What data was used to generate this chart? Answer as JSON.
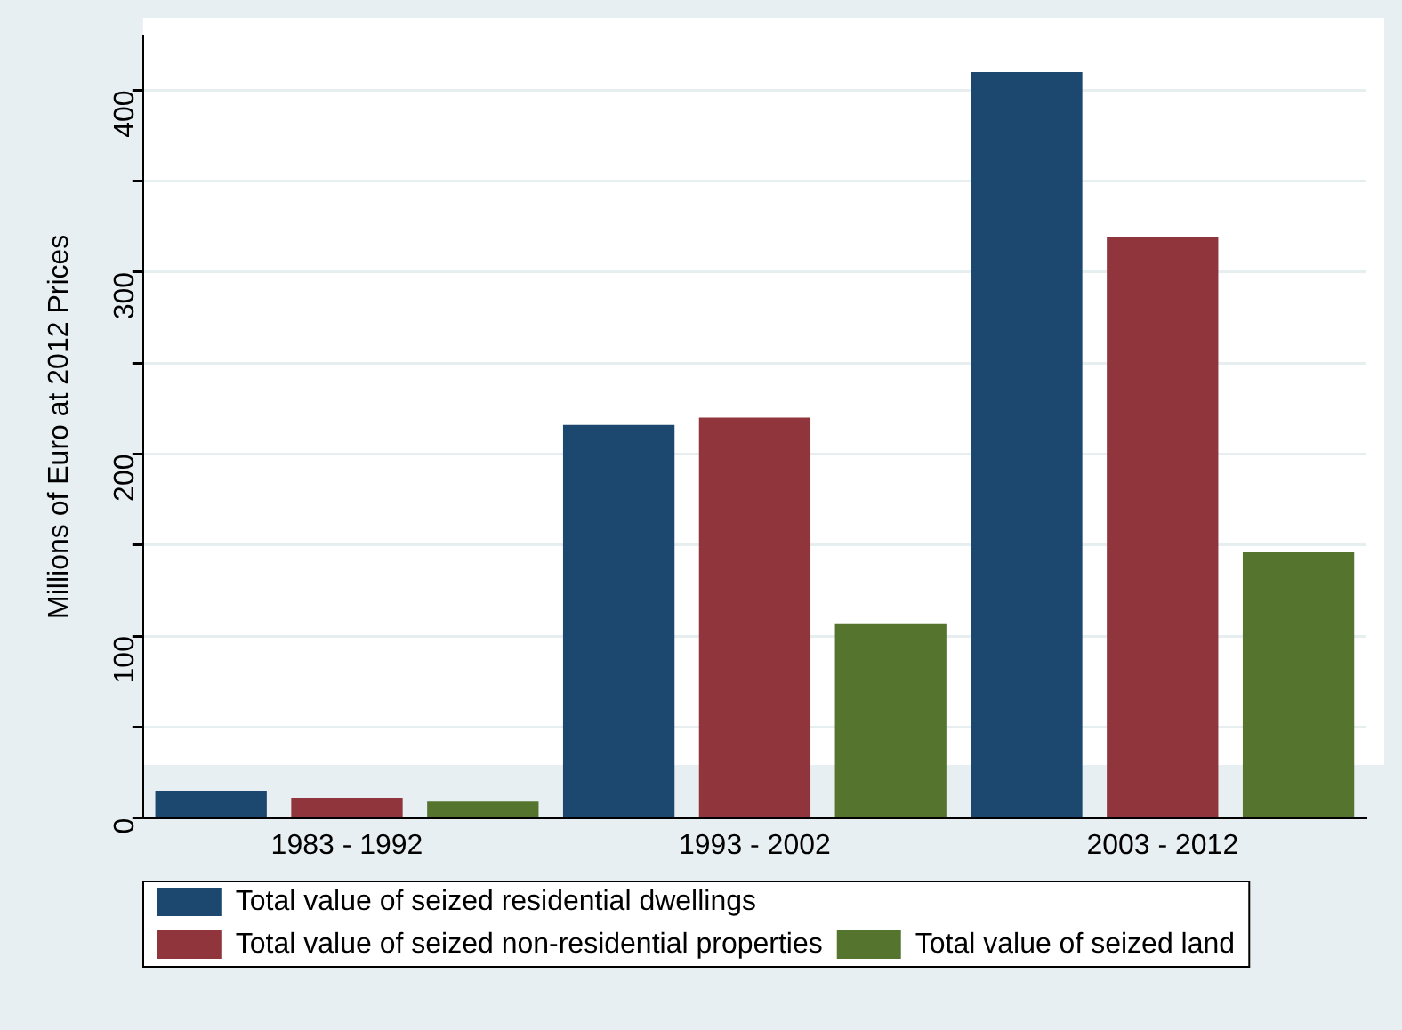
{
  "chart_data": {
    "type": "bar",
    "ylabel": "Millions of Euro at 2012 Prices",
    "categories": [
      "1983 - 1992",
      "1993 - 2002",
      "2003 - 2012"
    ],
    "series": [
      {
        "name": "Total value of seized residential dwellings",
        "color": "#1c476e",
        "values": [
          15,
          216,
          410
        ]
      },
      {
        "name": "Total value of seized non-residential properties",
        "color": "#90353b",
        "values": [
          11,
          220,
          319
        ]
      },
      {
        "name": "Total value of seized land",
        "color": "#55752f",
        "values": [
          9,
          107,
          146
        ]
      }
    ],
    "ylim": [
      0,
      430
    ],
    "yticks": [
      0,
      {
        "value": 50,
        "label": null
      },
      100,
      {
        "value": 150,
        "label": null
      },
      200,
      {
        "value": 250,
        "label": null
      },
      300,
      {
        "value": 350,
        "label": null
      },
      400
    ],
    "grid": "y",
    "legend": "bottom"
  }
}
